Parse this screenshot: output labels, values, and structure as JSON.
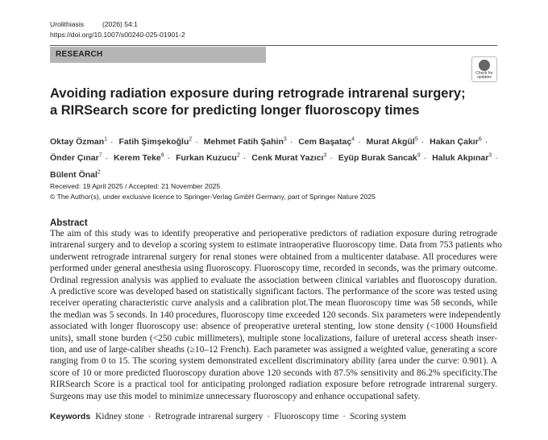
{
  "header": {
    "journal": "Urolithiasis",
    "issue": "(2026) 54:1",
    "doi": "https://doi.org/10.1007/s00240-025-01901-2",
    "section": "RESEARCH",
    "badge": "Check for updates"
  },
  "title": "Avoiding radiation exposure during retrograde intrarenal surgery; a RIRSearch score for predicting longer fluoroscopy times",
  "authors": {
    "separator": "·",
    "list": [
      {
        "name": "Oktay Özman",
        "affil": "1"
      },
      {
        "name": "Fatih Şimşekoğlu",
        "affil": "2"
      },
      {
        "name": "Mehmet Fatih Şahin",
        "affil": "3"
      },
      {
        "name": "Cem Başataç",
        "affil": "4"
      },
      {
        "name": "Murat Akgül",
        "affil": "5"
      },
      {
        "name": "Hakan Çakır",
        "affil": "6"
      },
      {
        "name": "Önder Çınar",
        "affil": "7"
      },
      {
        "name": "Kerem Teke",
        "affil": "8"
      },
      {
        "name": "Furkan Kuzucu",
        "affil": "2"
      },
      {
        "name": "Cenk Murat Yazıcı",
        "affil": "3"
      },
      {
        "name": "Eyüp Burak Sancak",
        "affil": "9"
      },
      {
        "name": "Haluk Akpınar",
        "affil": "3"
      },
      {
        "name": "Bülent Önal",
        "affil": "2"
      }
    ]
  },
  "dates": "Received: 19 April 2025 / Accepted: 21 November 2025",
  "copyright": "© The Author(s), under exclusive licence to Springer-Verlag GmbH Germany, part of Springer Nature 2025",
  "abstract": {
    "heading": "Abstract",
    "lines": [
      "The aim of this study was to identify preoperative and perioperative predictors of radiation exposure during retrograde",
      "intrarenal surgery and to develop a scoring system to estimate intraoperative fluoroscopy time. Data from 753 patients who",
      "underwent retrograde intrarenal surgery for renal stones were obtained from a multicenter database. All procedures were",
      "performed under general anesthesia using fluoroscopy. Fluoroscopy time, recorded in seconds, was the primary outcome.",
      "Ordinal regression analysis was applied to evaluate the association between clinical variables and fluoroscopy duration.",
      "A predictive score was developed based on statistically significant factors. The performance of the score was tested using",
      "receiver operating characteristic curve analysis and a calibration plot.The mean fluoroscopy time was 58 seconds, while",
      "the median was 5 seconds. In 140 procedures, fluoroscopy time exceeded 120 seconds. Six parameters were independently",
      "associated with longer fluoroscopy use: absence of preoperative ureteral stenting, low stone density (<1000 Hounsfield",
      "units), small stone burden (<250 cubic millimeters), multiple stone localizations, failure of ureteral access sheath inser-",
      "tion, and use of large-caliber sheaths (≥10–12 French). Each parameter was assigned a weighted value, generating a score",
      "ranging from 0 to 15. The scoring system demonstrated excellent discriminatory ability (area under the curve: 0.901). A",
      "score of 10 or more predicted fluoroscopy duration above 120 seconds with 87.5% sensitivity and 86.2% specificity.The",
      "RIRSearch Score is a practical tool for anticipating prolonged radiation exposure before retrograde intrarenal surgery.",
      "Surgeons may use this model to minimize unnecessary fluoroscopy and enhance occupational safety."
    ]
  },
  "keywords": {
    "heading": "Keywords",
    "separator": "·",
    "list": [
      "Kidney stone",
      "Retrograde intrarenal surgery",
      "Fluoroscopy time",
      "Scoring system"
    ]
  }
}
